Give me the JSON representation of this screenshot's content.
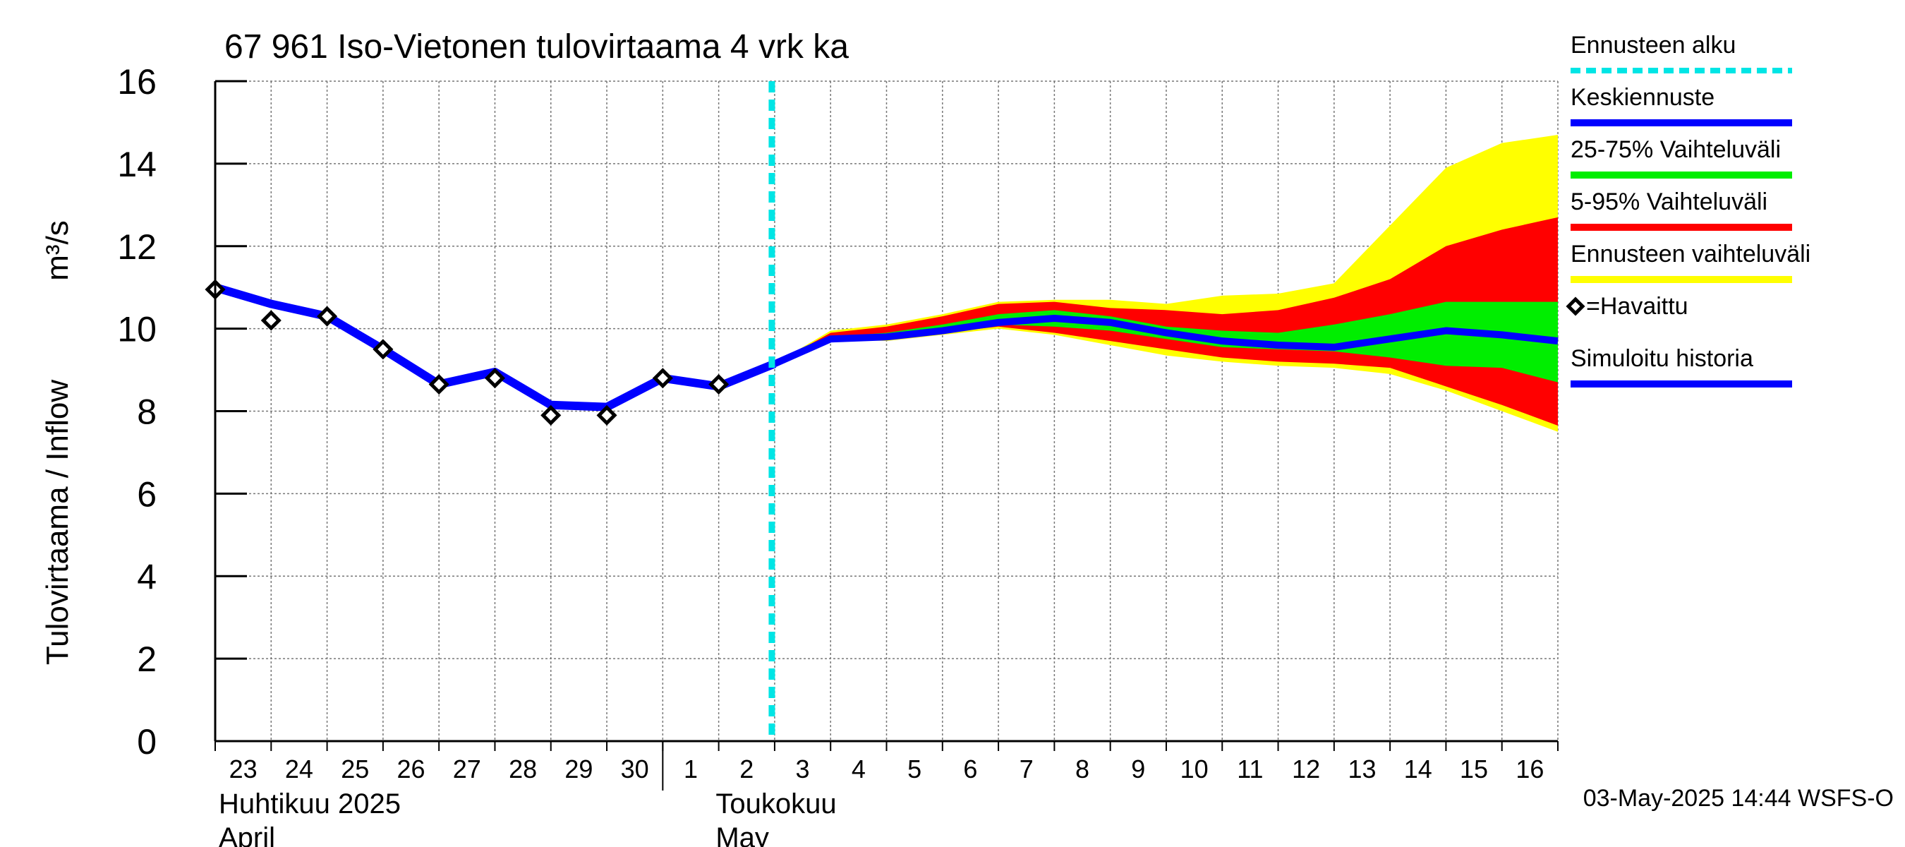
{
  "chart_data": {
    "type": "line",
    "title": "67 961 Iso-Vietonen tulovirtaama 4 vrk ka",
    "ylabel": "Tulovirtaama / Inflow",
    "yunit": "m³/s",
    "ylim": [
      0,
      16
    ],
    "yticks": [
      0,
      2,
      4,
      6,
      8,
      10,
      12,
      14,
      16
    ],
    "grid": true,
    "legend_placement": "right",
    "x_day_labels": [
      "23",
      "24",
      "25",
      "26",
      "27",
      "28",
      "29",
      "30",
      "1",
      "2",
      "3",
      "4",
      "5",
      "6",
      "7",
      "8",
      "9",
      "10",
      "11",
      "12",
      "13",
      "14",
      "15",
      "16"
    ],
    "month_labels": [
      {
        "line1": "Huhtikuu  2025",
        "line2": "April"
      },
      {
        "line1": "Toukokuu",
        "line2": "May"
      }
    ],
    "forecast_start_index": 10,
    "series": [
      {
        "name": "=Havaittu",
        "kind": "observed-markers",
        "x_index": [
          0,
          1,
          2,
          3,
          4,
          5,
          6,
          7,
          8,
          9
        ],
        "values": [
          10.95,
          10.2,
          10.3,
          9.5,
          8.65,
          8.8,
          7.9,
          7.9,
          8.8,
          8.65
        ]
      },
      {
        "name": "Simuloitu historia",
        "kind": "line",
        "x_index": [
          0,
          1,
          2,
          3,
          4,
          5,
          6,
          7,
          8,
          9,
          10
        ],
        "values": [
          11.0,
          10.6,
          10.3,
          9.5,
          8.65,
          8.95,
          8.15,
          8.1,
          8.8,
          8.6,
          9.15
        ]
      },
      {
        "name": "Keskiennuste",
        "kind": "line",
        "x_index": [
          10,
          11,
          12,
          13,
          14,
          15,
          16,
          17,
          18,
          19,
          20,
          21,
          22,
          23,
          24
        ],
        "values": [
          9.15,
          9.75,
          9.8,
          9.95,
          10.15,
          10.25,
          10.15,
          9.9,
          9.7,
          9.6,
          9.55,
          9.75,
          9.95,
          9.85,
          9.7
        ]
      },
      {
        "name": "Ennusteen vaihteluväli",
        "kind": "band",
        "x_index": [
          10,
          11,
          12,
          13,
          14,
          15,
          16,
          17,
          18,
          19,
          20,
          21,
          22,
          23,
          24
        ],
        "upper": [
          9.15,
          9.95,
          10.1,
          10.35,
          10.65,
          10.7,
          10.7,
          10.6,
          10.8,
          10.85,
          11.1,
          12.5,
          13.9,
          14.5,
          14.7
        ],
        "lower": [
          9.15,
          9.75,
          9.7,
          9.85,
          10.0,
          9.85,
          9.6,
          9.35,
          9.2,
          9.1,
          9.05,
          8.9,
          8.5,
          8.0,
          7.5
        ]
      },
      {
        "name": "5-95% Vaihteluväli",
        "kind": "band",
        "x_index": [
          10,
          11,
          12,
          13,
          14,
          15,
          16,
          17,
          18,
          19,
          20,
          21,
          22,
          23,
          24
        ],
        "upper": [
          9.15,
          9.9,
          10.05,
          10.3,
          10.6,
          10.65,
          10.5,
          10.45,
          10.35,
          10.45,
          10.75,
          11.2,
          12.0,
          12.4,
          12.7
        ],
        "lower": [
          9.15,
          9.75,
          9.75,
          9.9,
          10.05,
          9.9,
          9.7,
          9.5,
          9.3,
          9.2,
          9.15,
          9.05,
          8.6,
          8.15,
          7.65
        ]
      },
      {
        "name": "25-75% Vaihteluväli",
        "kind": "band",
        "x_index": [
          10,
          11,
          12,
          13,
          14,
          15,
          16,
          17,
          18,
          19,
          20,
          21,
          22,
          23,
          24
        ],
        "upper": [
          9.15,
          9.8,
          9.9,
          10.1,
          10.35,
          10.45,
          10.3,
          10.05,
          9.95,
          9.9,
          10.1,
          10.35,
          10.65,
          10.65,
          10.65
        ],
        "lower": [
          9.15,
          9.75,
          9.8,
          9.95,
          10.1,
          10.05,
          9.95,
          9.75,
          9.55,
          9.5,
          9.45,
          9.3,
          9.1,
          9.05,
          8.7
        ]
      }
    ],
    "legend": [
      {
        "label": "Ennusteen alku",
        "color": "#00e5e5",
        "style": "dashed"
      },
      {
        "label": "Keskiennuste",
        "color": "#0000ff",
        "style": "solid"
      },
      {
        "label": "25-75% Vaihteluväli",
        "color": "#00ee00",
        "style": "solid"
      },
      {
        "label": "5-95% Vaihteluväli",
        "color": "#ff0000",
        "style": "solid"
      },
      {
        "label": "Ennusteen vaihteluväli",
        "color": "#ffff00",
        "style": "solid"
      },
      {
        "label": "=Havaittu",
        "color": "#000000",
        "style": "marker"
      },
      {
        "label": "Simuloitu historia",
        "color": "#0000ff",
        "style": "solid"
      }
    ],
    "timestamp": "03-May-2025 14:44 WSFS-O",
    "colors": {
      "forecast_start": "#00e5e5",
      "mean_forecast": "#0000ff",
      "band_25_75": "#00ee00",
      "band_5_95": "#ff0000",
      "band_full": "#ffff00",
      "simulated": "#0000ff",
      "observed": "#000000",
      "grid": "#777777"
    }
  }
}
